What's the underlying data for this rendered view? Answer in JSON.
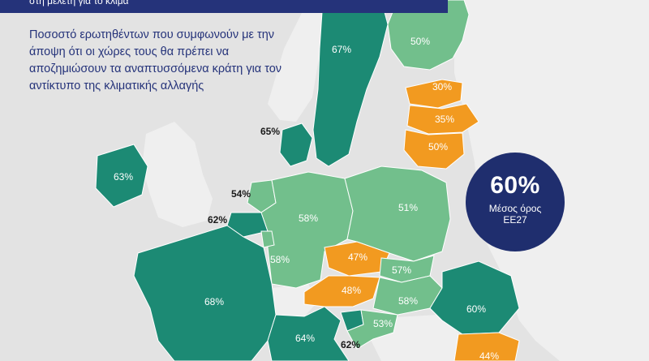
{
  "header": {
    "banner_text": "στη μελέτη για το κλίμα"
  },
  "subtitle": "Ποσοστό ερωτηθέντων που συμφωνούν με την άποψη ότι οι χώρες τους θα πρέπει να αποζημιώσουν τα αναπτυσσόμενα κράτη για τον αντίκτυπο της κλιματικής αλλαγής",
  "average": {
    "value": "60%",
    "label": "Μέσος όρος",
    "sublabel": "ΕΕ27"
  },
  "colors": {
    "dark_green": "#1c8a74",
    "light_green": "#72bf8c",
    "orange": "#f29a20",
    "non_eu": "#efefef",
    "sea": "#e3e3e3",
    "navy": "#25337a"
  },
  "legend_categories": [
    "dark_green",
    "light_green",
    "orange"
  ],
  "regions": [
    {
      "id": "finland",
      "value": "50%",
      "category": "light_green"
    },
    {
      "id": "sweden",
      "value": "67%",
      "category": "dark_green"
    },
    {
      "id": "estonia",
      "value": "30%",
      "category": "orange"
    },
    {
      "id": "latvia",
      "value": "35%",
      "category": "orange"
    },
    {
      "id": "lithuania",
      "value": "50%",
      "category": "orange"
    },
    {
      "id": "denmark",
      "value": "65%",
      "category": "dark_green"
    },
    {
      "id": "ireland",
      "value": "63%",
      "category": "dark_green"
    },
    {
      "id": "netherlands",
      "value": "54%",
      "category": "light_green"
    },
    {
      "id": "belgium",
      "value": "62%",
      "category": "dark_green"
    },
    {
      "id": "germany",
      "value": "58%",
      "category": "light_green"
    },
    {
      "id": "poland",
      "value": "51%",
      "category": "light_green"
    },
    {
      "id": "luxembourg",
      "value": "58%",
      "category": "light_green"
    },
    {
      "id": "czechia",
      "value": "47%",
      "category": "orange"
    },
    {
      "id": "slovakia",
      "value": "57%",
      "category": "light_green"
    },
    {
      "id": "austria",
      "value": "48%",
      "category": "orange"
    },
    {
      "id": "hungary",
      "value": "58%",
      "category": "light_green"
    },
    {
      "id": "romania",
      "value": "60%",
      "category": "dark_green"
    },
    {
      "id": "france",
      "value": "68%",
      "category": "dark_green"
    },
    {
      "id": "italy",
      "value": "64%",
      "category": "dark_green"
    },
    {
      "id": "slovenia",
      "value": "62%",
      "category": "dark_green"
    },
    {
      "id": "croatia",
      "value": "53%",
      "category": "light_green"
    },
    {
      "id": "bulgaria",
      "value": "44%",
      "category": "orange"
    }
  ]
}
